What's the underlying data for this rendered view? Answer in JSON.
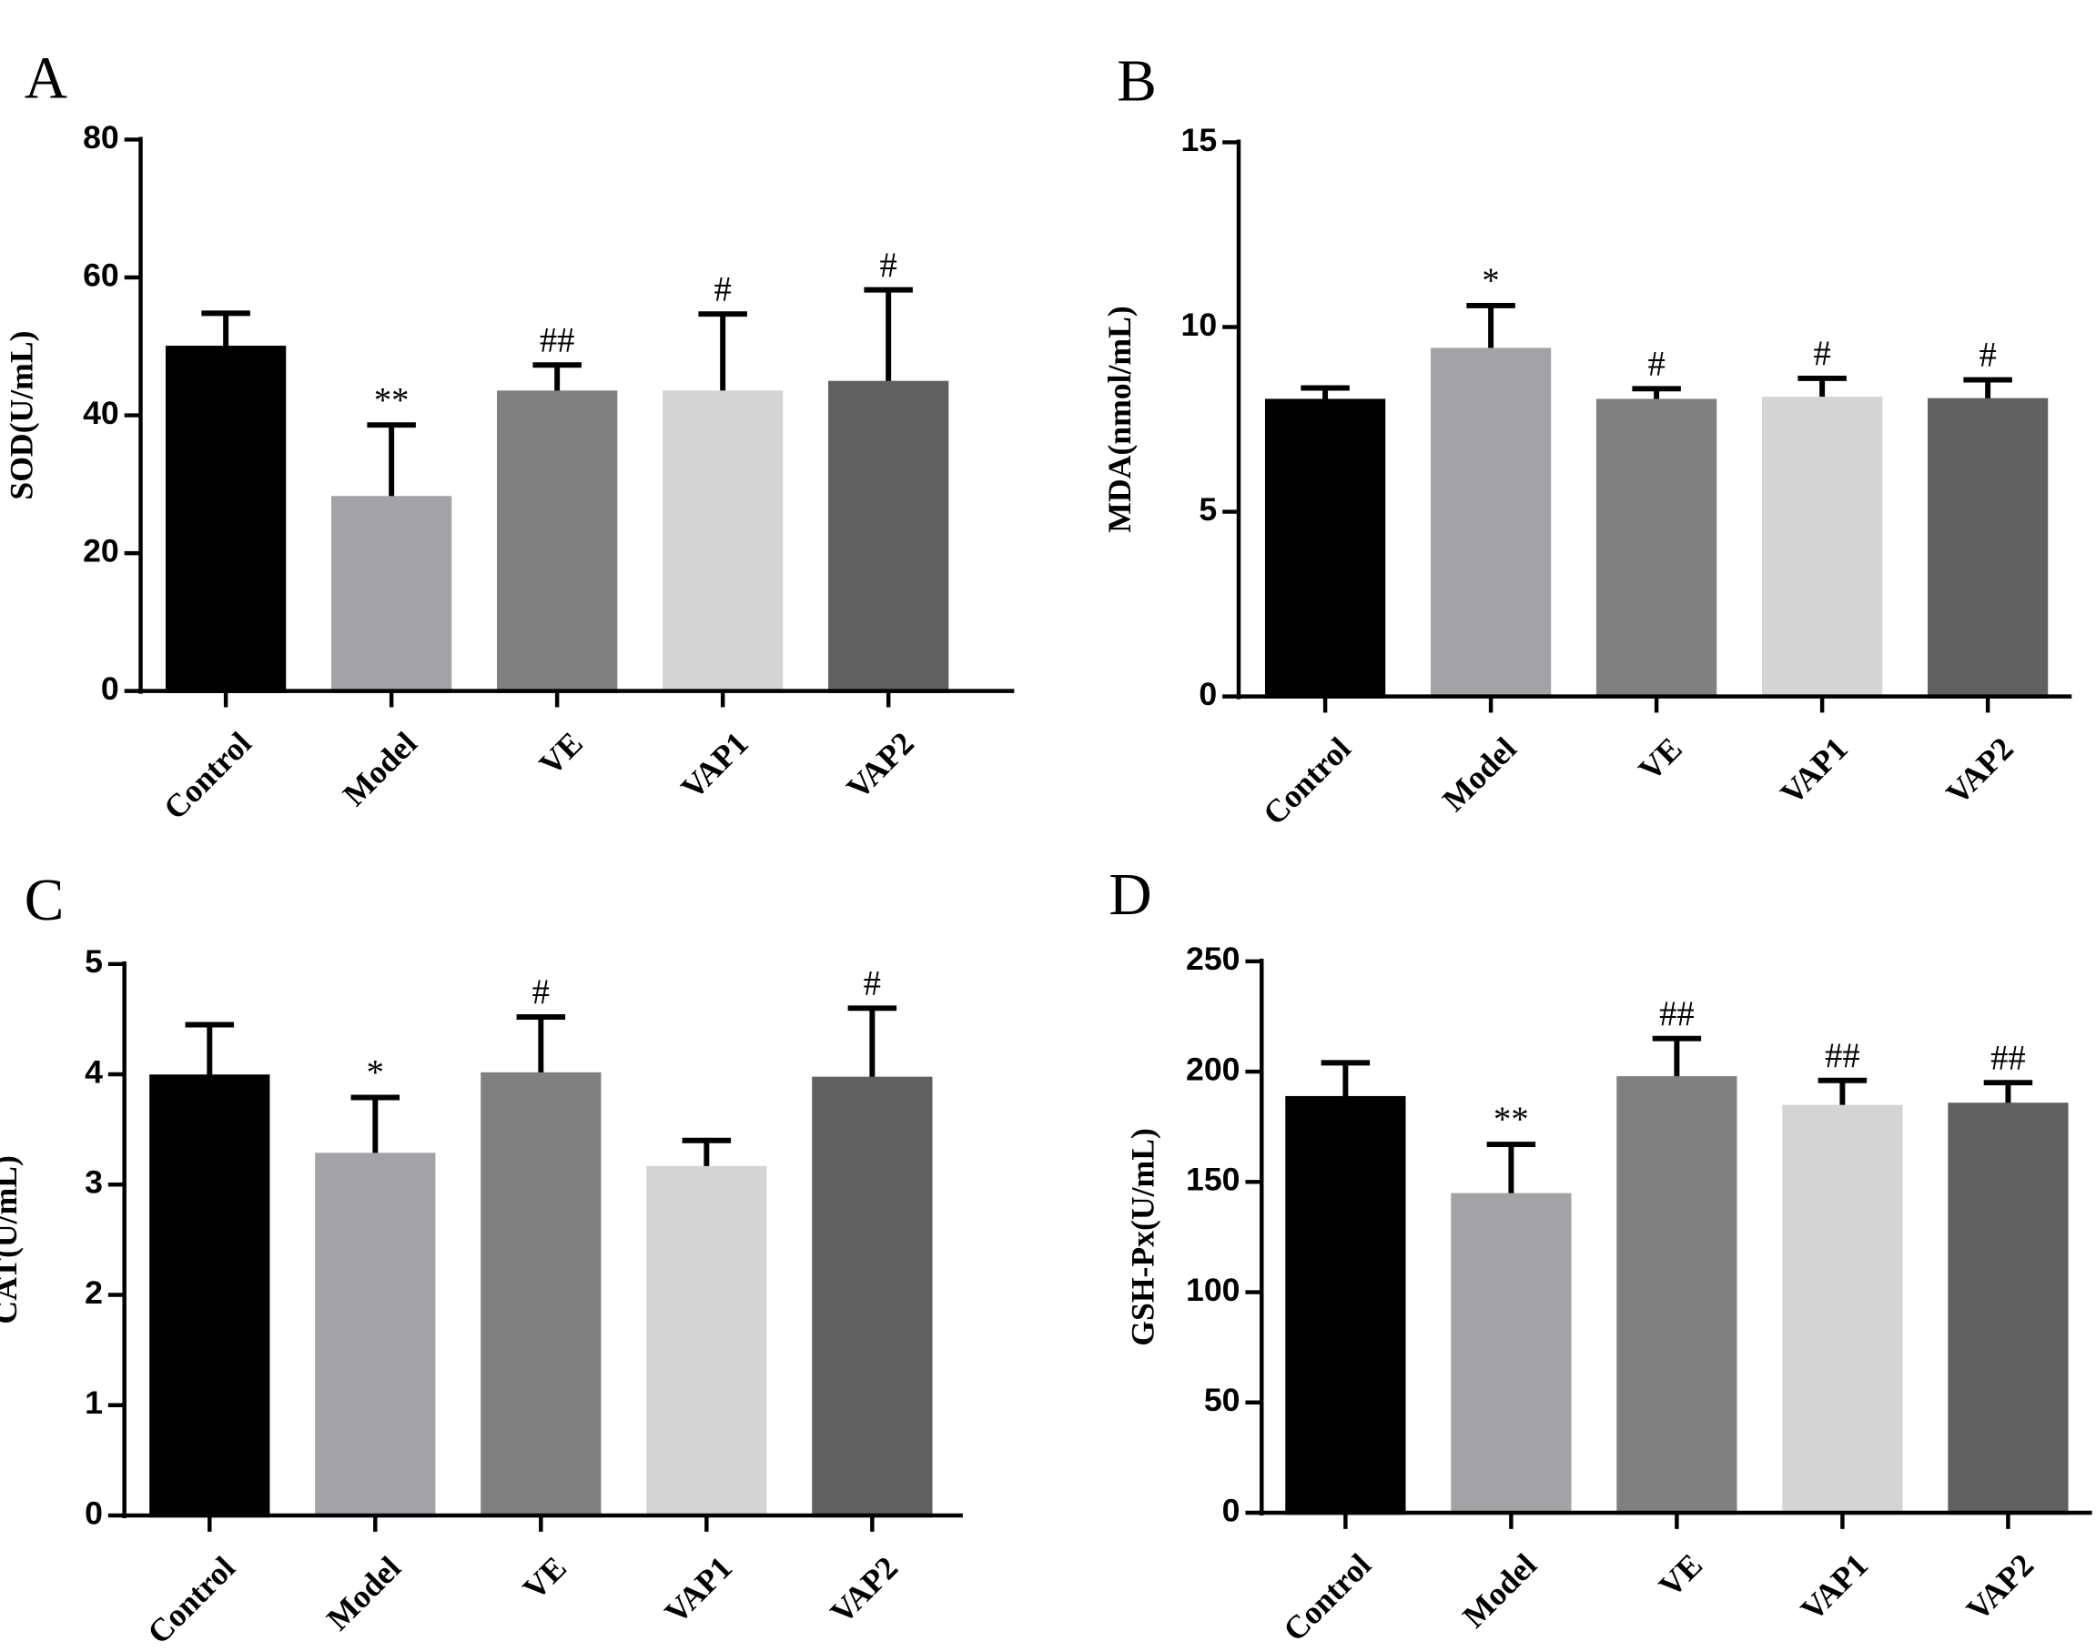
{
  "chart_data": [
    {
      "type": "bar",
      "panel": "A",
      "ylabel": "SOD(U/mL)",
      "categories": [
        "Control",
        "Model",
        "VE",
        "VAP1",
        "VAP2"
      ],
      "values": [
        49.8,
        28,
        43.3,
        43.3,
        44.7
      ],
      "errors": [
        5,
        10.6,
        4,
        11.4,
        13.5
      ],
      "annotations": [
        null,
        "**",
        "##",
        "#",
        "#"
      ],
      "colors": [
        "#000000",
        "#a3a3a7",
        "#808080",
        "#d4d4d4",
        "#606060"
      ],
      "ylim": [
        0,
        80
      ],
      "yticks": [
        0,
        20,
        40,
        60,
        80
      ]
    },
    {
      "type": "bar",
      "panel": "B",
      "ylabel": "MDA(nmol/mL)",
      "categories": [
        "Control",
        "Model",
        "VE",
        "VAP1",
        "VAP2"
      ],
      "values": [
        8.0,
        9.38,
        8.0,
        8.06,
        8.02
      ],
      "errors": [
        0.35,
        1.2,
        0.33,
        0.55,
        0.55
      ],
      "annotations": [
        null,
        "*",
        "#",
        "#",
        "#"
      ],
      "colors": [
        "#000000",
        "#a3a3a7",
        "#808080",
        "#d4d4d4",
        "#606060"
      ],
      "ylim": [
        0,
        15
      ],
      "yticks": [
        0,
        5,
        10,
        15
      ]
    },
    {
      "type": "bar",
      "panel": "C",
      "ylabel": "CAT(U/mL)",
      "categories": [
        "Control",
        "Model",
        "VE",
        "VAP1",
        "VAP2"
      ],
      "values": [
        3.98,
        3.27,
        4.0,
        3.15,
        3.96
      ],
      "errors": [
        0.47,
        0.52,
        0.52,
        0.25,
        0.64
      ],
      "annotations": [
        null,
        "*",
        "#",
        null,
        "#"
      ],
      "colors": [
        "#000000",
        "#a3a3a7",
        "#808080",
        "#d4d4d4",
        "#606060"
      ],
      "ylim": [
        0,
        5
      ],
      "yticks": [
        0,
        1,
        2,
        3,
        4,
        5
      ]
    },
    {
      "type": "bar",
      "panel": "D",
      "ylabel": "GSH-Px(U/mL)",
      "categories": [
        "Control",
        "Model",
        "VE",
        "VAP1",
        "VAP2"
      ],
      "values": [
        188,
        144,
        197,
        184,
        185
      ],
      "errors": [
        16,
        23,
        18,
        12,
        10
      ],
      "annotations": [
        null,
        "**",
        "##",
        "##",
        "##"
      ],
      "colors": [
        "#000000",
        "#a3a3a7",
        "#808080",
        "#d4d4d4",
        "#606060"
      ],
      "ylim": [
        0,
        250
      ],
      "yticks": [
        0,
        50,
        100,
        150,
        200,
        250
      ]
    }
  ]
}
